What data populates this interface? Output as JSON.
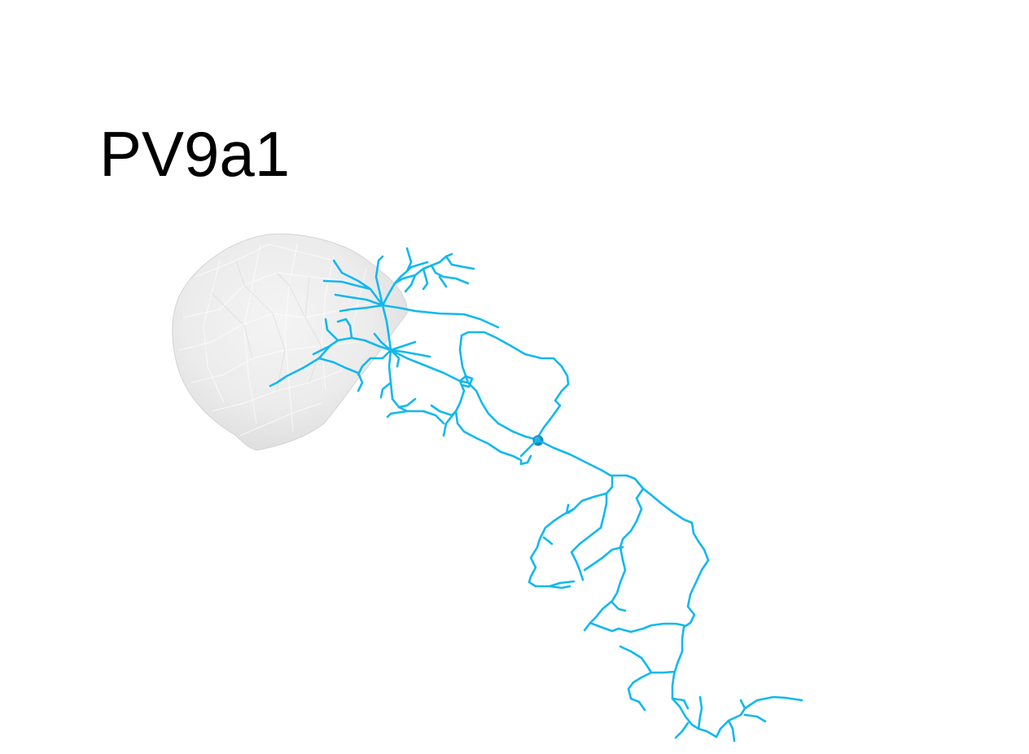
{
  "figure": {
    "label": "PV9a1"
  },
  "colors": {
    "neuron": "#12b8f0",
    "soma": "#0b8fc4",
    "neuropil": "#e6e6e6",
    "neuropil_edge": "#d4d4d4",
    "background": "#ffffff"
  },
  "icons": {
    "neuropil_mesh": "neuropil-mesh",
    "soma": "soma-sphere"
  }
}
